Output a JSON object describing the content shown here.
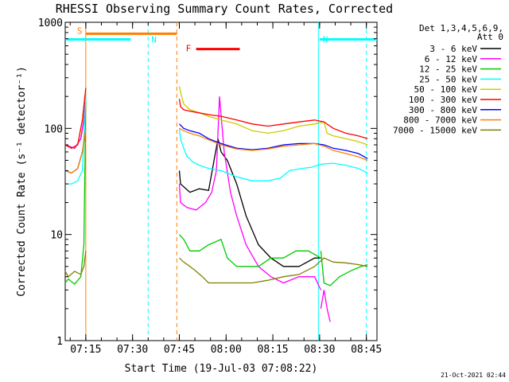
{
  "chart_data": {
    "type": "line",
    "title": "RHESSI Observing Summary Count Rates, Corrected",
    "xlabel": "Start Time (19-Jul-03 07:08:22)",
    "ylabel": "Corrected Count Rate (s⁻¹ detector⁻¹)",
    "y_scale": "log",
    "xlim_minutes_since_start": [
      0,
      100
    ],
    "ylim": [
      1,
      1000
    ],
    "x_ticks": [
      {
        "label": "07:15",
        "t": 6.6
      },
      {
        "label": "07:30",
        "t": 21.6
      },
      {
        "label": "07:45",
        "t": 36.6
      },
      {
        "label": "08:00",
        "t": 51.6
      },
      {
        "label": "08:15",
        "t": 66.6
      },
      {
        "label": "08:30",
        "t": 81.6
      },
      {
        "label": "08:45",
        "t": 96.6
      }
    ],
    "y_ticks": [
      {
        "label": "1",
        "v": 1
      },
      {
        "label": "10",
        "v": 10
      },
      {
        "label": "100",
        "v": 100
      },
      {
        "label": "1000",
        "v": 1000
      }
    ],
    "legend_header": [
      "Det 1,3,4,5,6,9,",
      "Att 0"
    ],
    "series": [
      {
        "name": "3 - 6 keV",
        "color": "#000000",
        "segments": [
          {
            "t": [
              0,
              3,
              5,
              6,
              6.6
            ],
            "v": [
              70,
              65,
              80,
              120,
              200
            ]
          },
          {
            "t": [
              36.6,
              37,
              40,
              43,
              46,
              49,
              50,
              52,
              55,
              58,
              62,
              66,
              70,
              75,
              80,
              82
            ],
            "v": [
              40,
              30,
              25,
              27,
              26,
              80,
              60,
              50,
              30,
              15,
              8,
              6,
              5,
              5,
              6,
              6
            ]
          }
        ]
      },
      {
        "name": "6 - 12 keV",
        "color": "#ff00ff",
        "segments": [
          {
            "t": [
              0,
              3,
              5,
              6,
              6.6
            ],
            "v": [
              70,
              65,
              80,
              120,
              200
            ]
          },
          {
            "t": [
              36.6,
              37,
              39,
              42,
              45,
              47,
              48.5,
              49.5,
              51,
              53,
              55,
              58,
              62,
              66,
              70,
              75,
              80,
              82
            ],
            "v": [
              30,
              20,
              18,
              17,
              20,
              25,
              40,
              200,
              60,
              25,
              15,
              8,
              5,
              4,
              3.5,
              4,
              4,
              3
            ]
          },
          {
            "t": [
              82,
              83,
              84,
              85
            ],
            "v": [
              2,
              3,
              2,
              1.5
            ]
          }
        ]
      },
      {
        "name": "12 - 25 keV",
        "color": "#00cc00",
        "segments": [
          {
            "t": [
              0,
              1,
              3,
              5,
              6,
              6.6
            ],
            "v": [
              3.5,
              3.8,
              3.4,
              4,
              8,
              200
            ]
          },
          {
            "t": [
              36.6,
              38,
              40,
              43,
              46,
              50,
              52,
              55,
              58,
              62,
              66,
              70,
              74,
              78,
              82
            ],
            "v": [
              10,
              9,
              7,
              7,
              8,
              9,
              6,
              5,
              5,
              5,
              6,
              6,
              7,
              7,
              6
            ]
          },
          {
            "t": [
              82,
              83,
              85,
              88,
              92,
              95,
              97
            ],
            "v": [
              7,
              3.5,
              3.3,
              4,
              4.6,
              5,
              5.2
            ]
          }
        ]
      },
      {
        "name": "25 - 50 keV",
        "color": "#00ffff",
        "segments": [
          {
            "t": [
              0,
              2,
              4,
              5.5,
              6.6
            ],
            "v": [
              30,
              30,
              32,
              40,
              200
            ]
          },
          {
            "t": [
              36.6,
              37,
              38,
              39,
              41,
              43,
              46,
              50,
              55,
              60,
              65,
              69,
              72,
              76,
              79,
              82,
              86,
              90,
              94,
              97
            ],
            "v": [
              100,
              80,
              65,
              55,
              48,
              45,
              42,
              40,
              35,
              32,
              32,
              34,
              40,
              42,
              43,
              46,
              47,
              45,
              42,
              38
            ]
          }
        ]
      },
      {
        "name": "50 - 100 keV",
        "color": "#cccc00",
        "segments": [
          {
            "t": [
              0,
              2,
              4,
              5.5,
              6.6
            ],
            "v": [
              70,
              65,
              70,
              120,
              240
            ]
          },
          {
            "t": [
              36.6,
              37,
              38,
              40,
              43,
              46,
              50,
              55,
              60,
              65,
              70,
              75,
              80,
              83,
              84,
              86,
              90,
              94,
              97
            ],
            "v": [
              250,
              220,
              170,
              150,
              140,
              130,
              120,
              110,
              95,
              90,
              95,
              105,
              110,
              115,
              90,
              85,
              80,
              75,
              70
            ]
          }
        ]
      },
      {
        "name": "100 - 300 keV",
        "color": "#ff0000",
        "segments": [
          {
            "t": [
              0,
              2,
              4,
              5.5,
              6.6
            ],
            "v": [
              70,
              65,
              70,
              120,
              240
            ]
          },
          {
            "t": [
              36.6,
              37,
              38,
              40,
              43,
              46,
              50,
              55,
              60,
              65,
              70,
              75,
              80,
              83,
              86,
              90,
              94,
              97
            ],
            "v": [
              190,
              160,
              150,
              145,
              140,
              135,
              130,
              120,
              110,
              105,
              110,
              115,
              120,
              115,
              100,
              90,
              85,
              80
            ]
          }
        ]
      },
      {
        "name": "300 - 800 keV",
        "color": "#0000ff",
        "segments": [
          {
            "t": [
              0,
              2,
              4,
              5.5,
              6.6
            ],
            "v": [
              40,
              38,
              42,
              60,
              100
            ]
          },
          {
            "t": [
              36.6,
              38,
              40,
              43,
              46,
              50,
              55,
              60,
              65,
              70,
              75,
              80,
              83,
              86,
              90,
              94,
              97
            ],
            "v": [
              110,
              100,
              95,
              90,
              80,
              72,
              65,
              63,
              65,
              70,
              72,
              72,
              70,
              65,
              62,
              58,
              52
            ]
          }
        ]
      },
      {
        "name": "800 - 7000 keV",
        "color": "#ff8000",
        "segments": [
          {
            "t": [
              0,
              2,
              4,
              5.5,
              6.6
            ],
            "v": [
              40,
              38,
              42,
              60,
              100
            ]
          },
          {
            "t": [
              36.6,
              38,
              40,
              43,
              46,
              50,
              55,
              60,
              65,
              70,
              75,
              80,
              83,
              86,
              90,
              94,
              97
            ],
            "v": [
              100,
              95,
              90,
              85,
              78,
              70,
              64,
              62,
              64,
              68,
              70,
              72,
              68,
              62,
              58,
              54,
              50
            ]
          }
        ]
      },
      {
        "name": "7000 - 15000 keV",
        "color": "#808000",
        "segments": [
          {
            "t": [
              0,
              1,
              3,
              5,
              6,
              6.6
            ],
            "v": [
              4.5,
              4,
              4.5,
              4.2,
              5,
              7
            ]
          },
          {
            "t": [
              36.6,
              38,
              40,
              42,
              44,
              46,
              48,
              50,
              55,
              60,
              65,
              70,
              75,
              80,
              83,
              86,
              90,
              94,
              97
            ],
            "v": [
              6,
              5.5,
              5,
              4.5,
              4,
              3.5,
              3.5,
              3.5,
              3.5,
              3.5,
              3.7,
              4,
              4.2,
              5,
              6,
              5.5,
              5.4,
              5.2,
              5
            ]
          }
        ]
      }
    ],
    "annotations": [
      {
        "label": "S",
        "color": "#ff8000",
        "band": [
          6.6,
          35.8
        ],
        "level": 780
      },
      {
        "label": "N",
        "color": "#00ffff",
        "band": [
          0,
          21
        ],
        "level": 690
      },
      {
        "label": "N",
        "color": "#00ffff",
        "band": [
          81.6,
          100
        ],
        "level": 690
      },
      {
        "label": "F",
        "color": "#ff0000",
        "band": [
          42,
          56
        ],
        "level": 560
      }
    ],
    "vertical_lines": [
      {
        "t": 6.6,
        "color": "#ff8000",
        "style": "solid"
      },
      {
        "t": 26.6,
        "color": "#00ffff",
        "style": "dashed"
      },
      {
        "t": 35.8,
        "color": "#ff8000",
        "style": "dashed"
      },
      {
        "t": 81.2,
        "color": "#00ffff",
        "style": "solid"
      },
      {
        "t": 96.6,
        "color": "#00ffff",
        "style": "dashed"
      }
    ],
    "timestamp": "21-Oct-2021 02:44"
  }
}
